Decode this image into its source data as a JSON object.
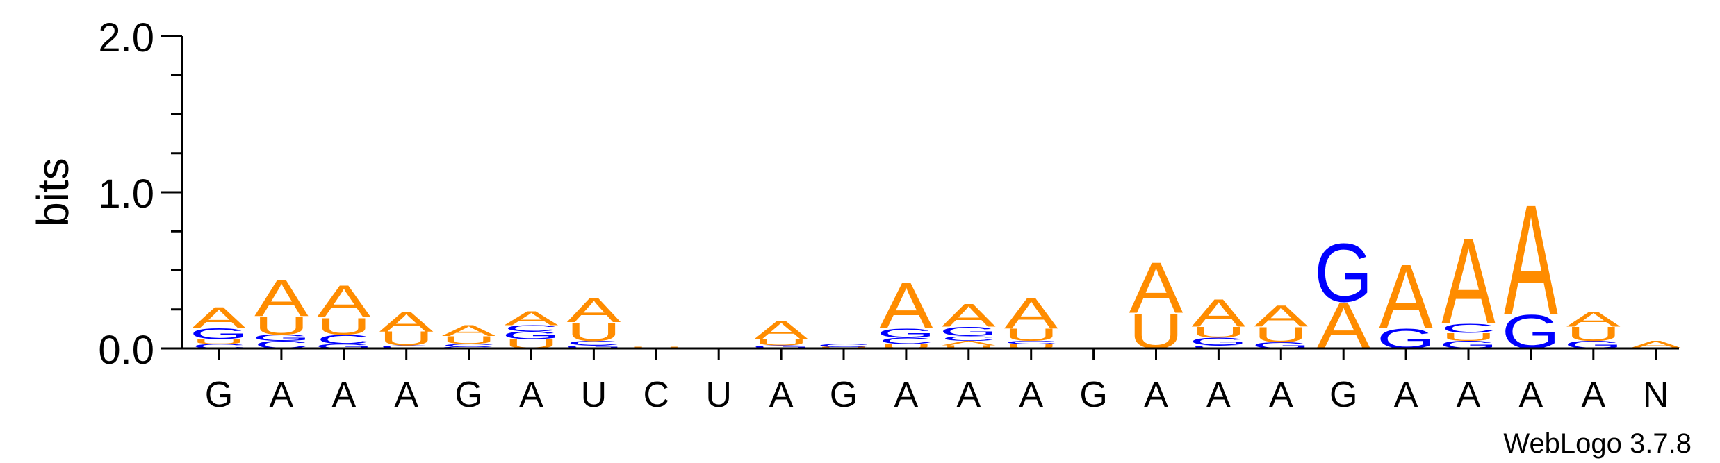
{
  "chart_data": {
    "type": "sequence-logo",
    "ylabel": "bits",
    "ylim": [
      0,
      2.0
    ],
    "yticks": [
      "0.0",
      "1.0",
      "2.0"
    ],
    "x_labels": [
      "G",
      "A",
      "A",
      "A",
      "G",
      "A",
      "U",
      "C",
      "U",
      "A",
      "G",
      "A",
      "A",
      "A",
      "G",
      "A",
      "A",
      "A",
      "G",
      "A",
      "A",
      "A",
      "A",
      "N"
    ],
    "colors": {
      "A": "#ff8c00",
      "U": "#ff8c00",
      "G": "#0000ff",
      "C": "#0000ff"
    },
    "stacks": [
      [
        [
          "C",
          0.03
        ],
        [
          "U",
          0.03
        ],
        [
          "G",
          0.07
        ],
        [
          "A",
          0.14
        ]
      ],
      [
        [
          "C",
          0.05
        ],
        [
          "G",
          0.04
        ],
        [
          "U",
          0.12
        ],
        [
          "A",
          0.24
        ]
      ],
      [
        [
          "G",
          0.03
        ],
        [
          "C",
          0.06
        ],
        [
          "U",
          0.11
        ],
        [
          "A",
          0.21
        ]
      ],
      [
        [
          "C",
          0.02
        ],
        [
          "U",
          0.09
        ],
        [
          "A",
          0.13
        ]
      ],
      [
        [
          "G",
          0.01
        ],
        [
          "C",
          0.02
        ],
        [
          "U",
          0.05
        ],
        [
          "A",
          0.07
        ]
      ],
      [
        [
          "U",
          0.06
        ],
        [
          "G",
          0.05
        ],
        [
          "C",
          0.04
        ],
        [
          "A",
          0.09
        ]
      ],
      [
        [
          "G",
          0.02
        ],
        [
          "C",
          0.03
        ],
        [
          "U",
          0.12
        ],
        [
          "A",
          0.16
        ]
      ],
      [
        [
          "U",
          0.01
        ]
      ],
      [
        [
          "U",
          0.005
        ]
      ],
      [
        [
          "G",
          0.02
        ],
        [
          "U",
          0.04
        ],
        [
          "A",
          0.12
        ]
      ],
      [
        [
          "U",
          0.01
        ],
        [
          "C",
          0.02
        ]
      ],
      [
        [
          "U",
          0.03
        ],
        [
          "C",
          0.04
        ],
        [
          "G",
          0.06
        ],
        [
          "A",
          0.3
        ]
      ],
      [
        [
          "U",
          0.02
        ],
        [
          "A",
          0.03
        ],
        [
          "C",
          0.03
        ],
        [
          "G",
          0.06
        ],
        [
          "A",
          0.15
        ]
      ],
      [
        [
          "U",
          0.03
        ],
        [
          "C",
          0.02
        ],
        [
          "U",
          0.08
        ],
        [
          "A",
          0.2
        ]
      ],
      [],
      [
        [
          "U",
          0.23
        ],
        [
          "A",
          0.33
        ]
      ],
      [
        [
          "C",
          0.02
        ],
        [
          "G",
          0.05
        ],
        [
          "U",
          0.07
        ],
        [
          "A",
          0.18
        ]
      ],
      [
        [
          "G",
          0.04
        ],
        [
          "U",
          0.1
        ],
        [
          "A",
          0.14
        ]
      ],
      [
        [
          "A",
          0.3
        ],
        [
          "G",
          0.38
        ]
      ],
      [
        [
          "G",
          0.13
        ],
        [
          "A",
          0.42
        ]
      ],
      [
        [
          "G",
          0.05
        ],
        [
          "U",
          0.05
        ],
        [
          "C",
          0.06
        ],
        [
          "A",
          0.56
        ]
      ],
      [
        [
          "G",
          0.22
        ],
        [
          "A",
          0.72
        ]
      ],
      [
        [
          "G",
          0.05
        ],
        [
          "U",
          0.09
        ],
        [
          "A",
          0.1
        ]
      ],
      [
        [
          "A",
          0.05
        ]
      ]
    ]
  },
  "watermark": "WebLogo 3.7.8"
}
